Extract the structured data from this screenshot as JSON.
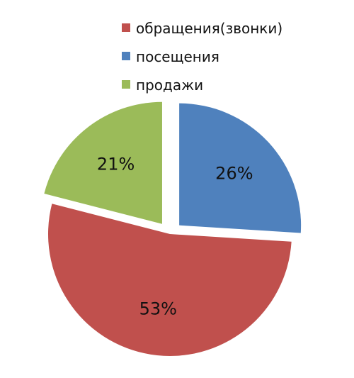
{
  "chart_data": {
    "type": "pie",
    "title": "",
    "legend_position": "top-right",
    "slices": [
      {
        "label": "обращения(звонки)",
        "value": 53,
        "display": "53%",
        "color": "#C0504D"
      },
      {
        "label": "посещения",
        "value": 26,
        "display": "26%",
        "color": "#4F81BD"
      },
      {
        "label": "продажи",
        "value": 21,
        "display": "21%",
        "color": "#9BBB59"
      }
    ]
  }
}
